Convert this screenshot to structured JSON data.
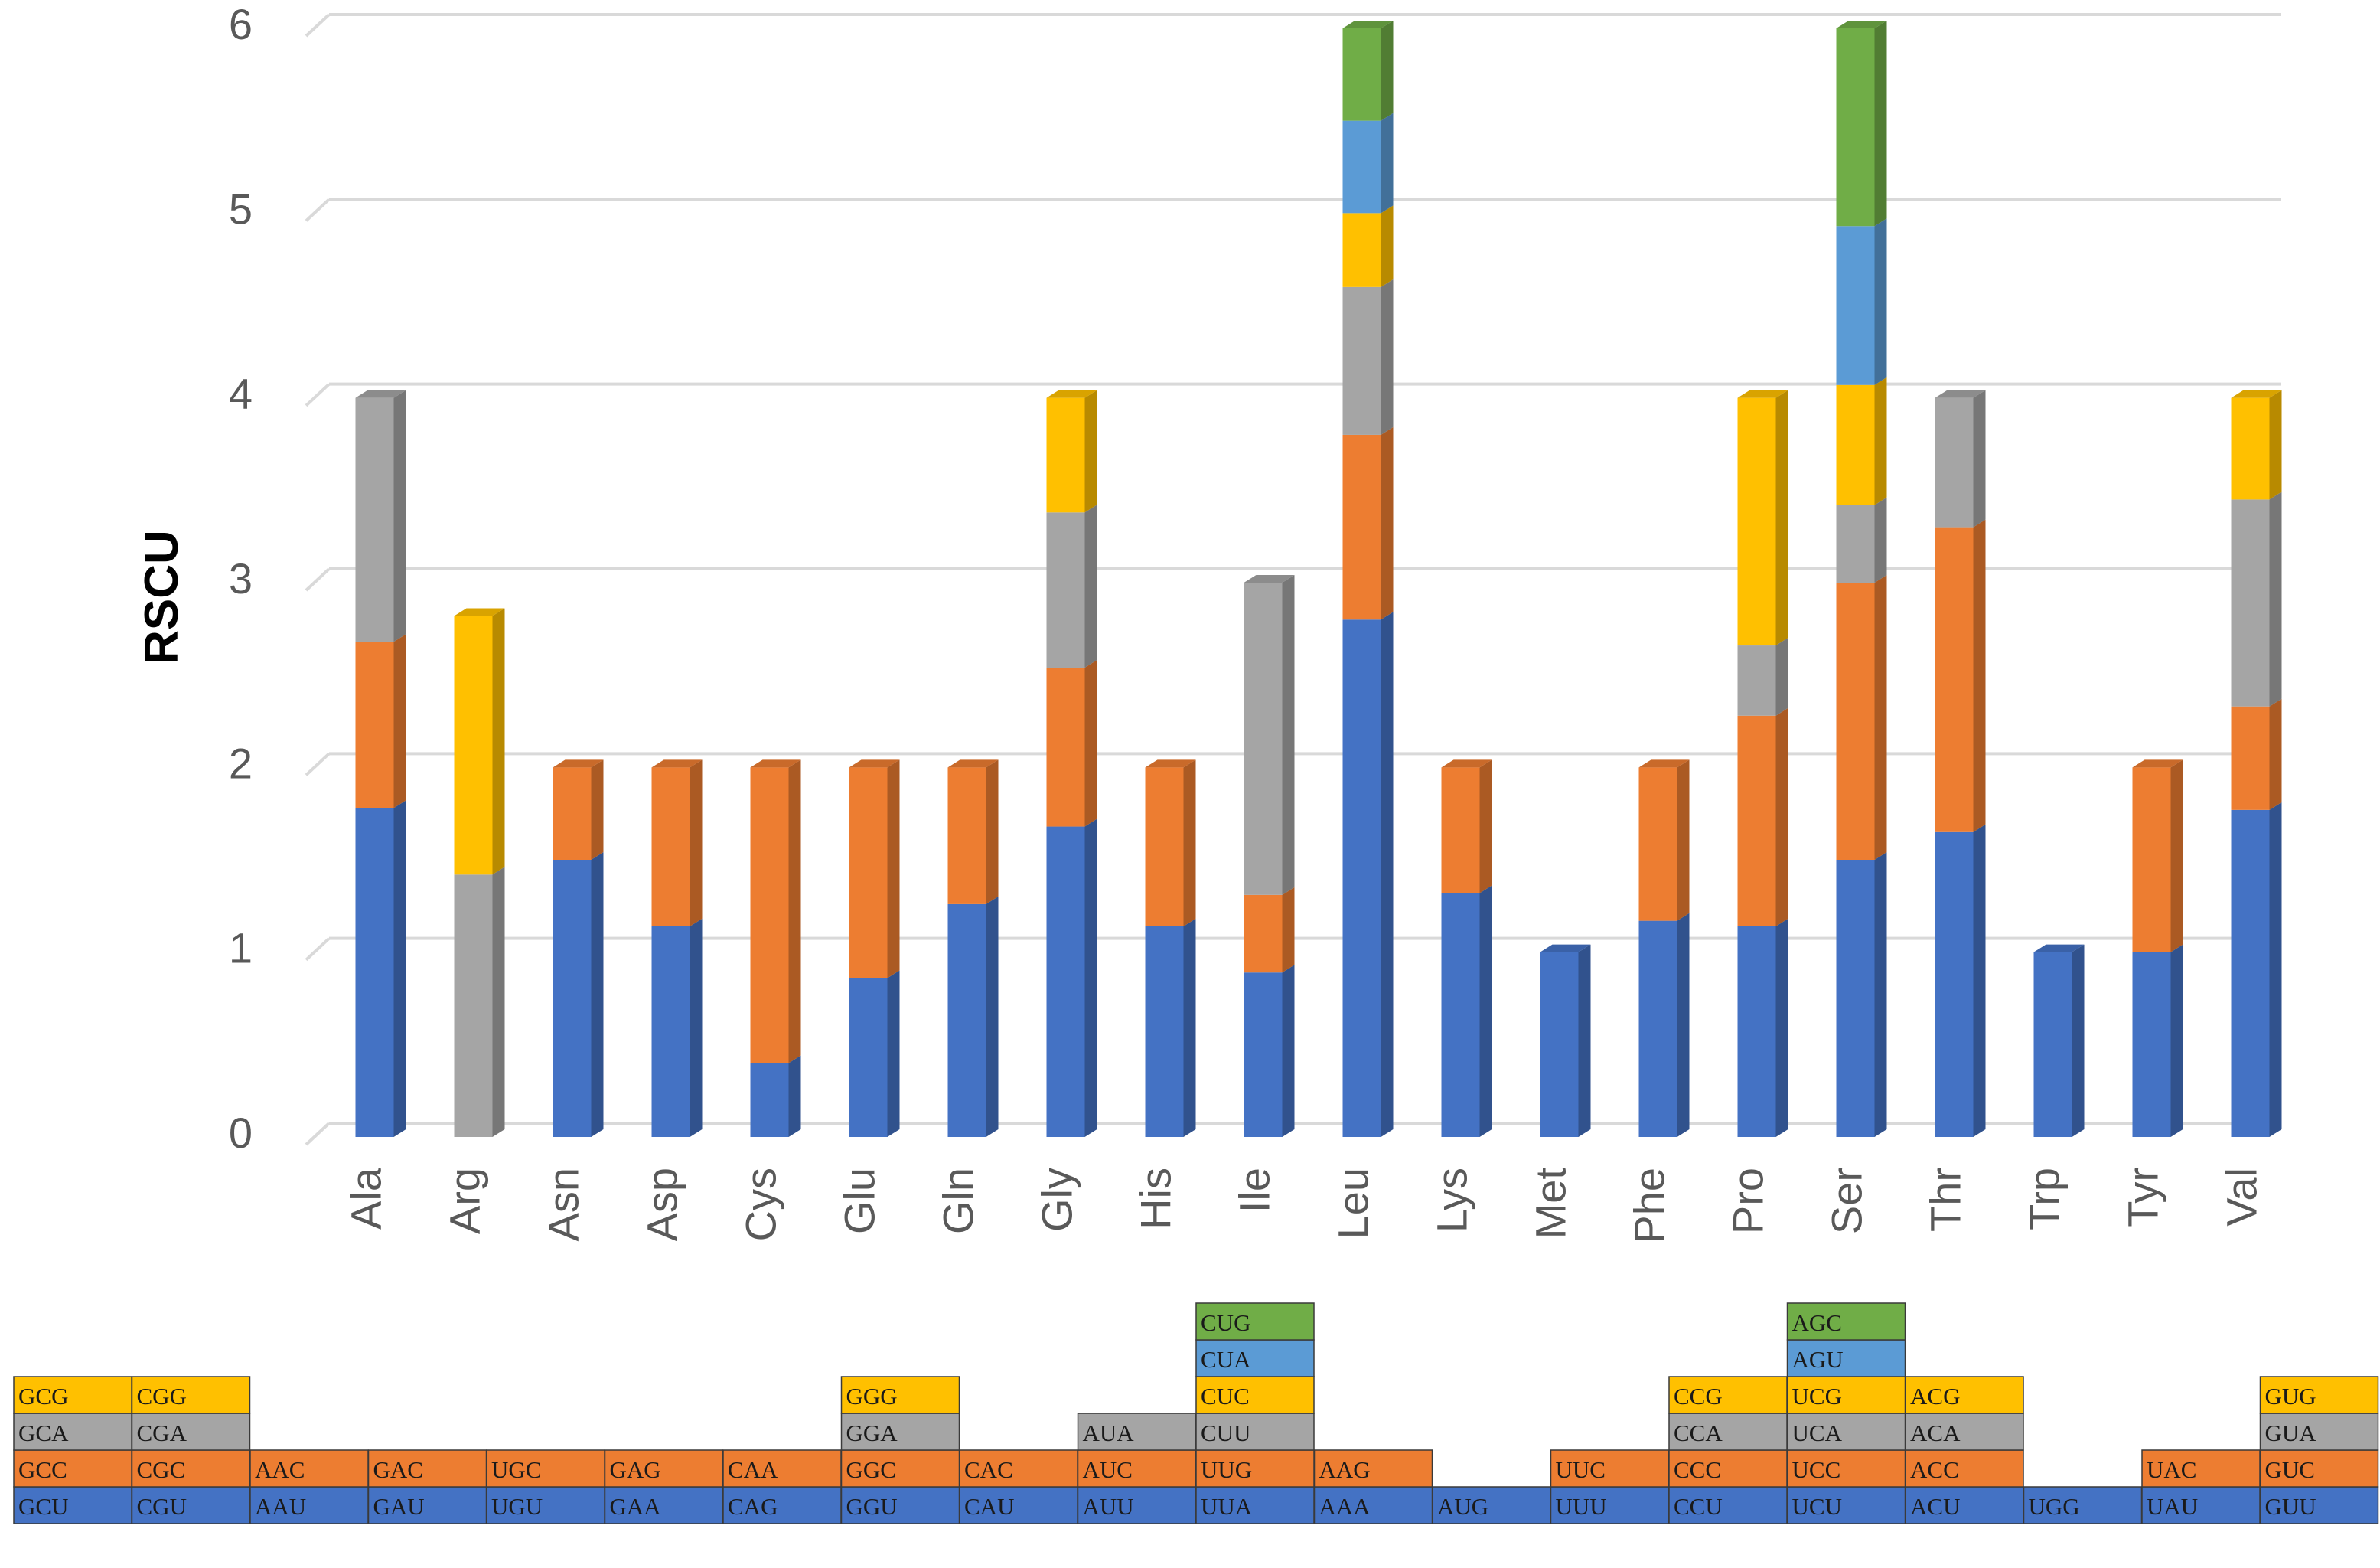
{
  "chart_data": {
    "type": "bar",
    "stacked": true,
    "title": "",
    "xlabel": "",
    "ylabel": "RSCU",
    "ylim": [
      0,
      6
    ],
    "yticks": [
      0,
      1,
      2,
      3,
      4,
      5,
      6
    ],
    "grid": true,
    "colors": [
      "#4472C4",
      "#ED7D31",
      "#A5A5A5",
      "#FFC000",
      "#5B9BD5",
      "#70AD47"
    ],
    "categories": [
      "Ala",
      "Arg",
      "Asn",
      "Asp",
      "Cys",
      "Glu",
      "Gln",
      "Gly",
      "His",
      "Ile",
      "Leu",
      "Lys",
      "Met",
      "Phe",
      "Pro",
      "Ser",
      "Thr",
      "Trp",
      "Tyr",
      "Val"
    ],
    "stacks": [
      {
        "aa": "Ala",
        "values": [
          1.78,
          0.9,
          1.32,
          0.0
        ],
        "codons": [
          "GCU",
          "GCC",
          "GCA",
          "GCG"
        ]
      },
      {
        "aa": "Arg",
        "values": [
          0.0,
          0.0,
          1.42,
          1.4
        ],
        "codons": [
          "CGU",
          "CGC",
          "CGA",
          "CGG"
        ]
      },
      {
        "aa": "Asn",
        "values": [
          1.5,
          0.5
        ],
        "codons": [
          "AAU",
          "AAC"
        ]
      },
      {
        "aa": "Asp",
        "values": [
          1.14,
          0.86
        ],
        "codons": [
          "GAU",
          "GAC"
        ]
      },
      {
        "aa": "Cys",
        "values": [
          0.4,
          1.6
        ],
        "codons": [
          "UGU",
          "UGC"
        ]
      },
      {
        "aa": "Glu",
        "values": [
          0.86,
          1.14
        ],
        "codons": [
          "GAA",
          "GAG"
        ]
      },
      {
        "aa": "Gln",
        "values": [
          1.26,
          0.74
        ],
        "codons": [
          "CAG",
          "CAA"
        ]
      },
      {
        "aa": "Gly",
        "values": [
          1.68,
          0.86,
          0.84,
          0.62
        ],
        "codons": [
          "GGU",
          "GGC",
          "GGA",
          "GGG"
        ]
      },
      {
        "aa": "His",
        "values": [
          1.14,
          0.86
        ],
        "codons": [
          "CAU",
          "CAC"
        ]
      },
      {
        "aa": "Ile",
        "values": [
          0.89,
          0.42,
          1.69
        ],
        "codons": [
          "AUU",
          "AUC",
          "AUA"
        ]
      },
      {
        "aa": "Leu",
        "values": [
          2.8,
          1.0,
          0.8,
          0.4,
          0.5,
          0.5
        ],
        "codons": [
          "UUA",
          "UUG",
          "CUU",
          "CUC",
          "CUA",
          "CUG"
        ]
      },
      {
        "aa": "Lys",
        "values": [
          1.32,
          0.68
        ],
        "codons": [
          "AAA",
          "AAG"
        ]
      },
      {
        "aa": "Met",
        "values": [
          1.0
        ],
        "codons": [
          "AUG"
        ]
      },
      {
        "aa": "Phe",
        "values": [
          1.17,
          0.83
        ],
        "codons": [
          "UUU",
          "UUC"
        ]
      },
      {
        "aa": "Pro",
        "values": [
          1.14,
          1.14,
          0.38,
          1.34
        ],
        "codons": [
          "CCU",
          "CCC",
          "CCA",
          "CCG"
        ]
      },
      {
        "aa": "Ser",
        "values": [
          1.5,
          1.5,
          0.42,
          0.65,
          0.86,
          1.07
        ],
        "codons": [
          "UCU",
          "UCC",
          "UCA",
          "UCG",
          "AGU",
          "AGC"
        ]
      },
      {
        "aa": "Thr",
        "values": [
          1.65,
          1.65,
          0.7,
          0.0
        ],
        "codons": [
          "ACU",
          "ACC",
          "ACA",
          "ACG"
        ]
      },
      {
        "aa": "Trp",
        "values": [
          1.0
        ],
        "codons": [
          "UGG"
        ]
      },
      {
        "aa": "Tyr",
        "values": [
          1.0,
          1.0
        ],
        "codons": [
          "UAU",
          "UAC"
        ]
      },
      {
        "aa": "Val",
        "values": [
          1.77,
          0.56,
          1.12,
          0.55
        ],
        "codons": [
          "GUU",
          "GUC",
          "GUA",
          "GUG"
        ]
      }
    ]
  }
}
